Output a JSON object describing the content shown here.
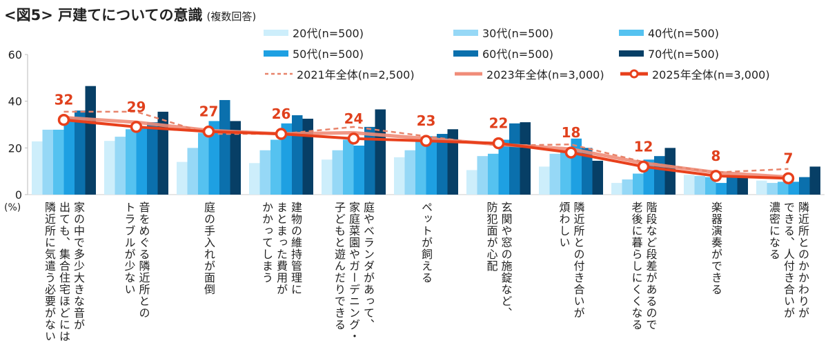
{
  "title": "<図5> 戸建てについての意識",
  "title_note": "(複数回答)",
  "y_unit_label": "(%)",
  "colors": {
    "age20": "#cdeefb",
    "age30": "#96d8f6",
    "age40": "#55c2f0",
    "age50": "#1ea0e2",
    "age60": "#0b70ad",
    "age70": "#073f66",
    "y2021": "#e8836a",
    "y2023": "#f08c78",
    "y2025": "#e8401c",
    "label": "#e0401c"
  },
  "legend": [
    {
      "label": "20代(n=500)",
      "kind": "bar",
      "color_key": "age20"
    },
    {
      "label": "30代(n=500)",
      "kind": "bar",
      "color_key": "age30"
    },
    {
      "label": "40代(n=500)",
      "kind": "bar",
      "color_key": "age40"
    },
    {
      "label": "50代(n=500)",
      "kind": "bar",
      "color_key": "age50"
    },
    {
      "label": "60代(n=500)",
      "kind": "bar",
      "color_key": "age60"
    },
    {
      "label": "70代(n=500)",
      "kind": "bar",
      "color_key": "age70"
    },
    {
      "label": "2021年全体(n=2,500)",
      "kind": "dashed",
      "color_key": "y2021"
    },
    {
      "label": "2023年全体(n=3,000)",
      "kind": "solid",
      "color_key": "y2023"
    },
    {
      "label": "2025年全体(n=3,000)",
      "kind": "marker",
      "color_key": "y2025"
    }
  ],
  "chart_data": {
    "type": "bar",
    "title": "<図5> 戸建てについての意識 (複数回答)",
    "xlabel": "",
    "ylabel": "(%)",
    "ylim": [
      0,
      60
    ],
    "yticks": [
      0,
      20,
      40,
      60
    ],
    "grid": false,
    "legend_position": "top-right",
    "categories": [
      "家の中で多少大きな音が\n出ても、集合住宅ほどには\n隣近所に気遣う必要がない",
      "音をめぐる隣近所との\nトラブルが少ない",
      "庭の手入れが面倒",
      "建物の維持管理に\nまとまった費用が\nかかってしまう",
      "庭やベランダがあって、\n家庭菜園やガーデニング・\n子どもと遊んだりできる",
      "ペットが飼える",
      "玄関や窓の施錠など、\n防犯面が心配",
      "隣近所との付き合いが\n煩わしい",
      "階段など段差があるので\n老後に暮らしにくくなる",
      "楽器演奏ができる",
      "隣近所とのかかわりが\nできる、人付き合いが\n濃密になる"
    ],
    "series": [
      {
        "name": "20代(n=500)",
        "type": "bar",
        "values": [
          22.8,
          23,
          14,
          13.5,
          15,
          16,
          10.5,
          12,
          5,
          8.5,
          6
        ]
      },
      {
        "name": "30代(n=500)",
        "type": "bar",
        "values": [
          27.8,
          24.8,
          20,
          19,
          19,
          19,
          16.5,
          17.5,
          6.5,
          8,
          5
        ]
      },
      {
        "name": "40代(n=500)",
        "type": "bar",
        "values": [
          27.8,
          28,
          26.5,
          23.5,
          23.5,
          23,
          17.5,
          18.5,
          9,
          7.5,
          5.5
        ]
      },
      {
        "name": "50代(n=500)",
        "type": "bar",
        "values": [
          33,
          29,
          31.5,
          30.5,
          21,
          25,
          23.5,
          24,
          15,
          5,
          5.5
        ]
      },
      {
        "name": "60代(n=500)",
        "type": "bar",
        "values": [
          36,
          31,
          40.5,
          34,
          29,
          26,
          30.5,
          20,
          16.5,
          7.5,
          7.5
        ]
      },
      {
        "name": "70代(n=500)",
        "type": "bar",
        "values": [
          46.5,
          35.5,
          31.5,
          32.5,
          36.5,
          28,
          31,
          14.5,
          20,
          7.5,
          12
        ]
      },
      {
        "name": "2021年全体(n=2,500)",
        "type": "line-dashed",
        "values": [
          35.5,
          35.5,
          26,
          26,
          29,
          25,
          21,
          21.5,
          14,
          9.5,
          11
        ]
      },
      {
        "name": "2023年全体(n=3,000)",
        "type": "line",
        "values": [
          33,
          31,
          27.5,
          26,
          26.5,
          24,
          21.5,
          19.5,
          13.5,
          9.5,
          7.5
        ]
      },
      {
        "name": "2025年全体(n=3,000)",
        "type": "line-marker",
        "values": [
          32,
          29,
          27,
          26,
          24,
          23,
          22,
          18,
          12,
          8,
          7
        ]
      }
    ],
    "data_labels": [
      "32",
      "29",
      "27",
      "26",
      "24",
      "23",
      "22",
      "18",
      "12",
      "8",
      "7"
    ]
  }
}
